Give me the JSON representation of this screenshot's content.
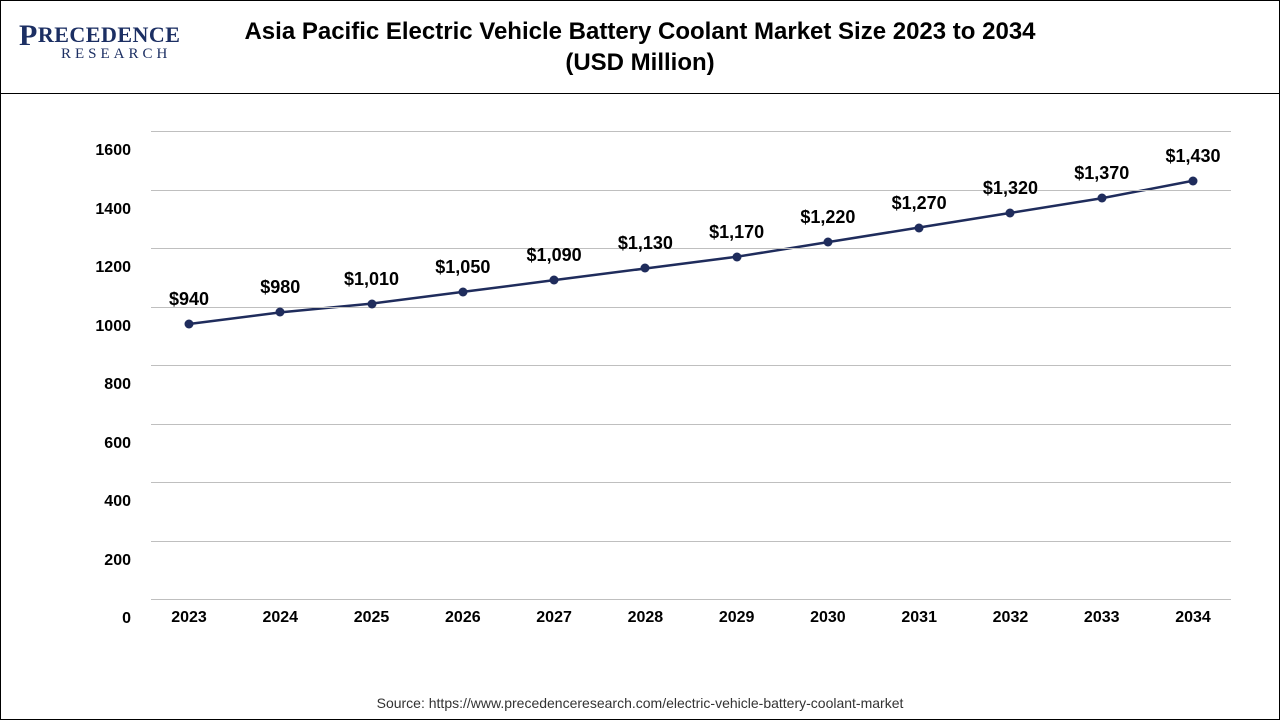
{
  "title_line1": "Asia Pacific Electric Vehicle Battery Coolant Market Size 2023 to 2034",
  "title_line2": "(USD Million)",
  "logo_main": "RECEDENCE",
  "logo_sub": "RESEARCH",
  "source": "Source: https://www.precedenceresearch.com/electric-vehicle-battery-coolant-market",
  "chart": {
    "type": "line",
    "line_color": "#1f2c5c",
    "line_width": 2.5,
    "marker_style": "circle",
    "marker_size": 9,
    "marker_color": "#1f2c5c",
    "background_color": "#ffffff",
    "grid_color": "#bfbfbf",
    "ylim": [
      0,
      1600
    ],
    "ytick_step": 200,
    "yticks": [
      0,
      200,
      400,
      600,
      800,
      1000,
      1200,
      1400,
      1600
    ],
    "categories": [
      "2023",
      "2024",
      "2025",
      "2026",
      "2027",
      "2028",
      "2029",
      "2030",
      "2031",
      "2032",
      "2033",
      "2034"
    ],
    "values": [
      940,
      980,
      1010,
      1050,
      1090,
      1130,
      1170,
      1220,
      1270,
      1320,
      1370,
      1430
    ],
    "data_labels": [
      "$940",
      "$980",
      "$1,010",
      "$1,050",
      "$1,090",
      "$1,130",
      "$1,170",
      "$1,220",
      "$1,270",
      "$1,320",
      "$1,370",
      "$1,430"
    ],
    "title_fontsize": 24,
    "label_fontsize": 16,
    "datalabel_fontsize": 18,
    "font_weight": "bold"
  }
}
